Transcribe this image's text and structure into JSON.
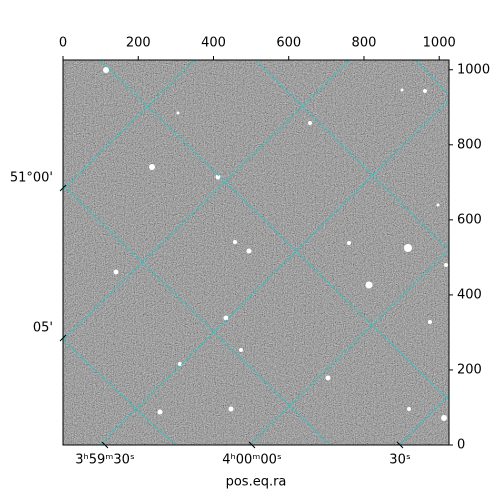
{
  "chart_data": {
    "type": "image",
    "xlabel": "pos.eq.ra",
    "xlim": [
      0,
      1026
    ],
    "xticks": [
      0,
      200,
      400,
      600,
      800,
      1000
    ],
    "ylim": [
      0,
      1026
    ],
    "yticks": [
      0,
      200,
      400,
      600,
      800,
      1000
    ],
    "world_x_labels": [
      "3ʰ59ᵐ30ˢ",
      "4ʰ00ᵐ00ˢ",
      "30ˢ"
    ],
    "world_y_labels": [
      "51°00'",
      "05'"
    ],
    "grid_color": "#20c8c8"
  }
}
